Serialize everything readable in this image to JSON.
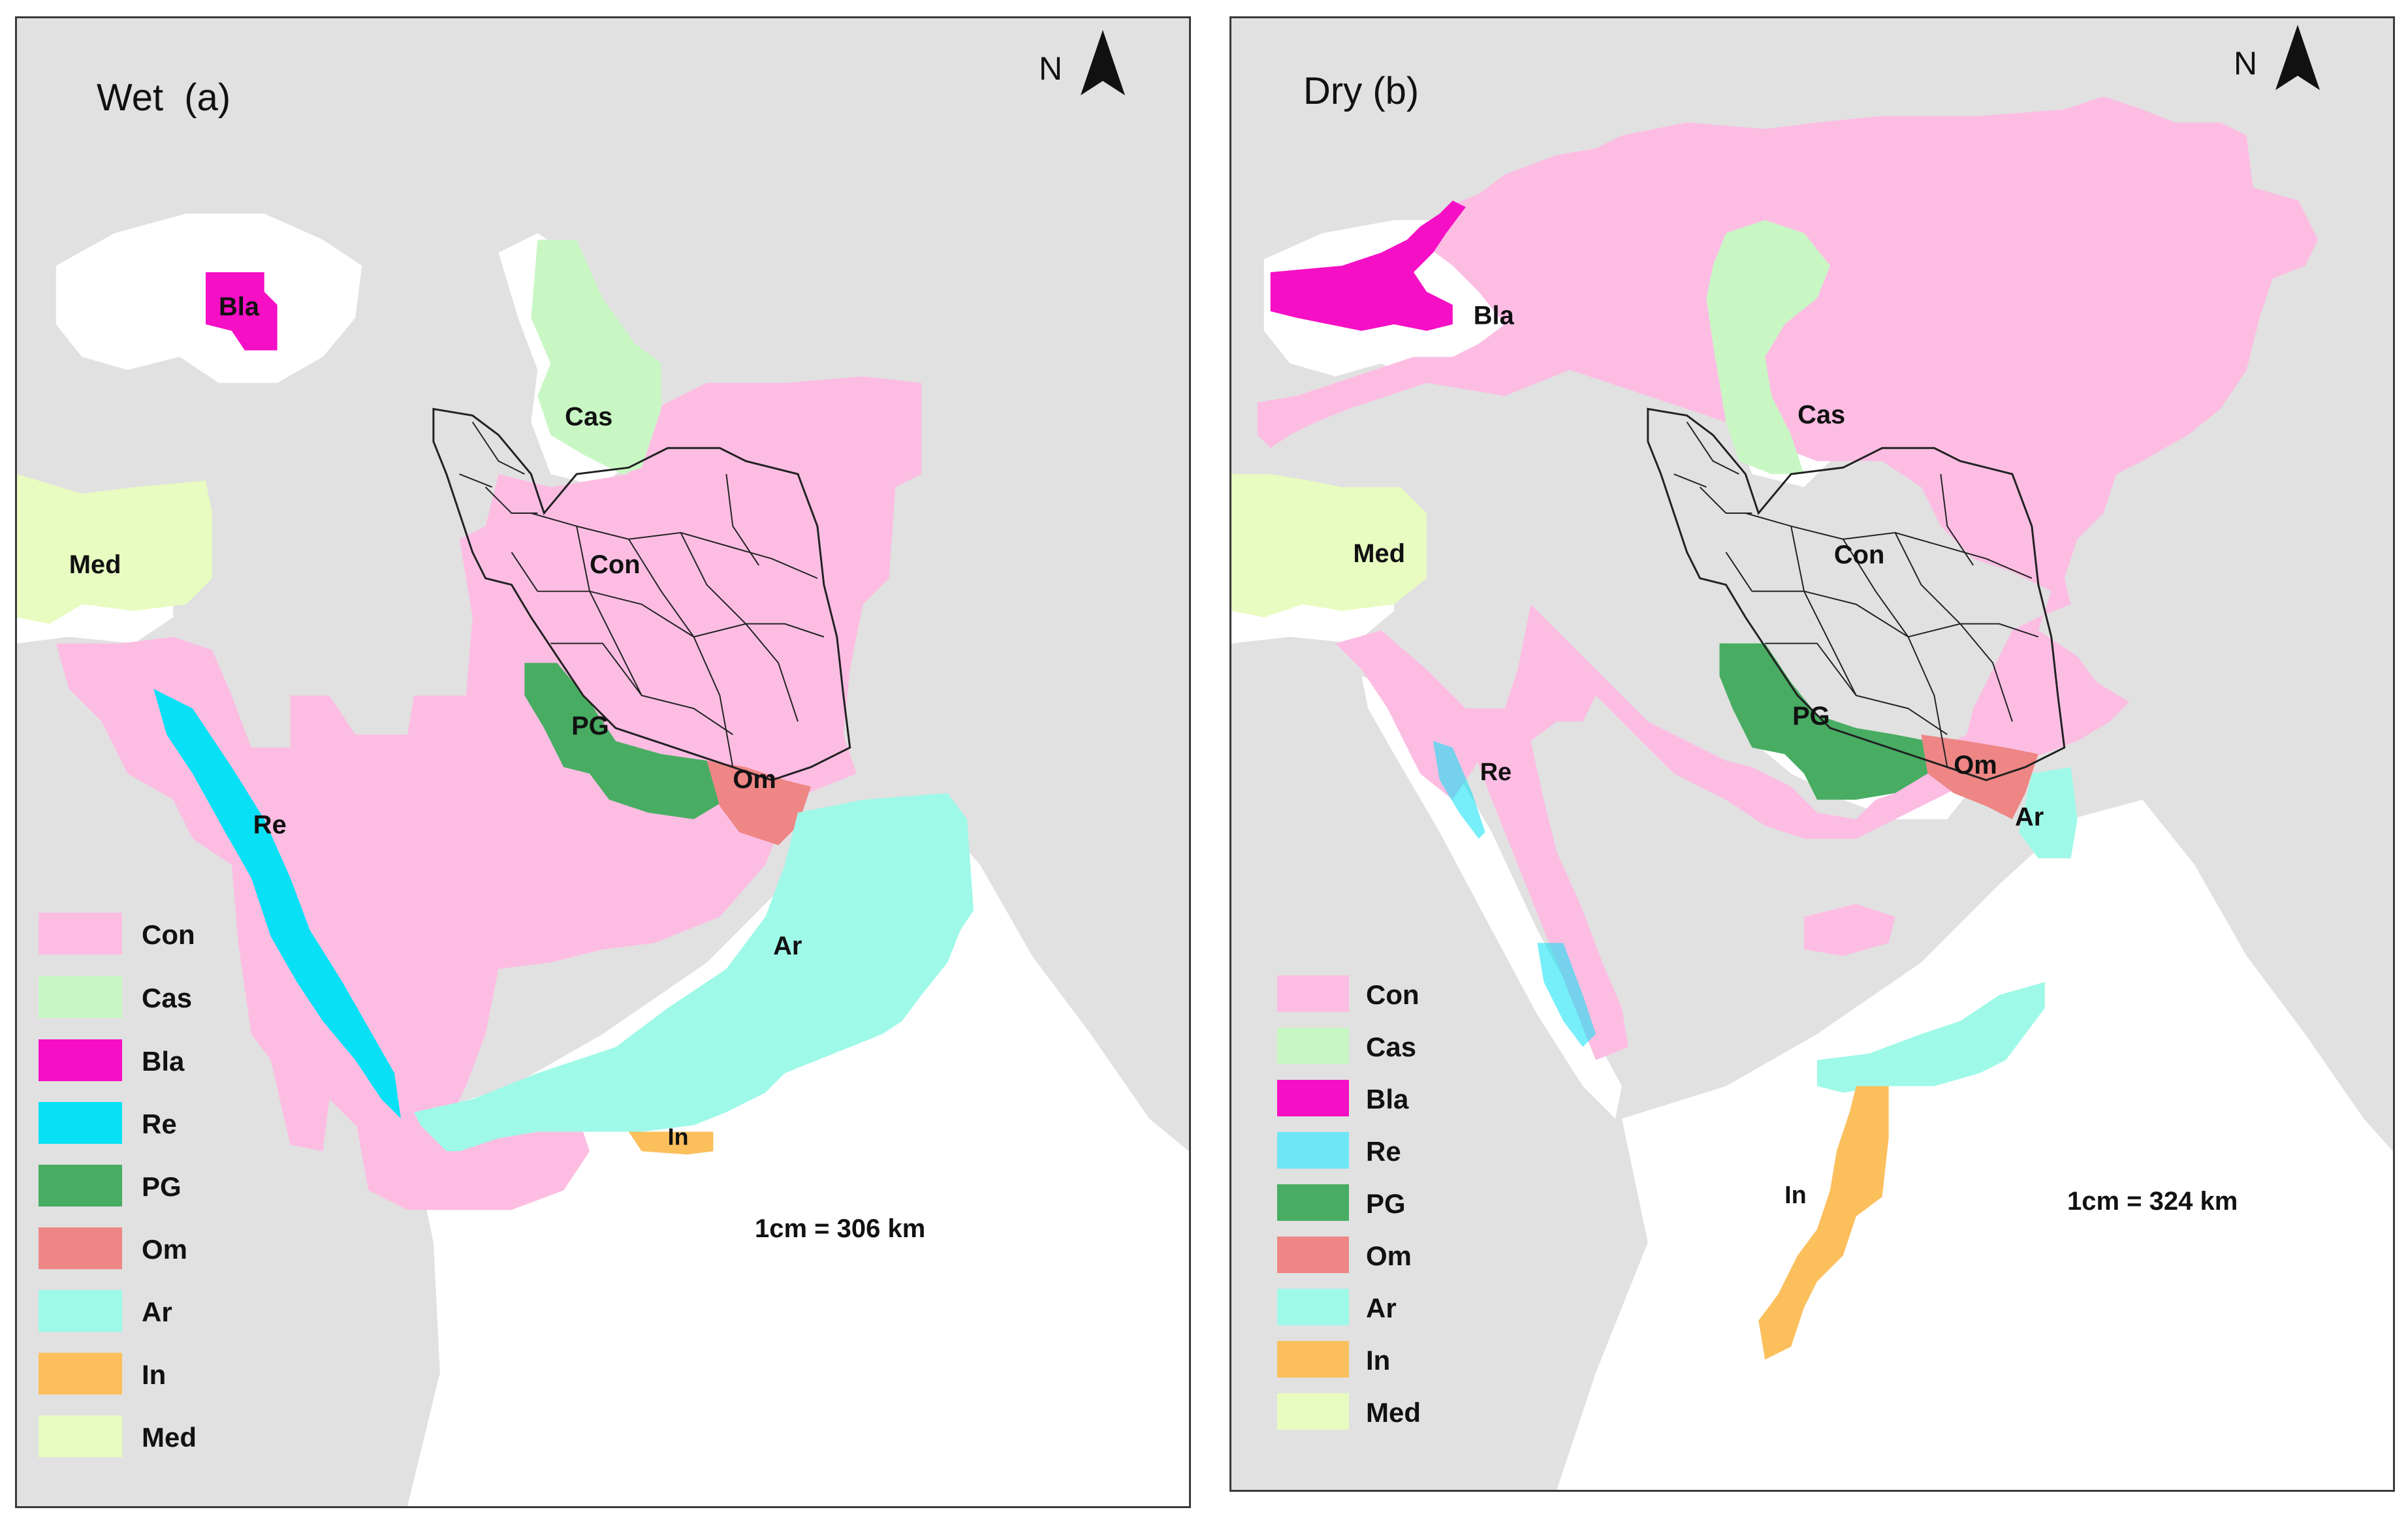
{
  "colors": {
    "land": "#e1e1e1",
    "sea": "#ffffff",
    "border": "#3a3a3a",
    "Con": "#fdbde3",
    "Cas": "#c9f7c4",
    "Bla": "#f50fc5",
    "Re": "#08e1f5",
    "PG": "#48ad63",
    "Om": "#ee8686",
    "Ar": "#9ff9e8",
    "In": "#fbbf5c",
    "Med": "#e8fbc1"
  },
  "panel_a": {
    "title": "Wet  (a)",
    "north_label": "N",
    "scale_text": "1cm = 306 km",
    "region_labels": {
      "Bla": "Bla",
      "Cas": "Cas",
      "Med": "Med",
      "Con": "Con",
      "PG": "PG",
      "Om": "Om",
      "Re": "Re",
      "Ar": "Ar",
      "In": "In"
    },
    "legend": [
      {
        "key": "Con",
        "label": "Con"
      },
      {
        "key": "Cas",
        "label": "Cas"
      },
      {
        "key": "Bla",
        "label": "Bla"
      },
      {
        "key": "Re",
        "label": "Re"
      },
      {
        "key": "PG",
        "label": "PG"
      },
      {
        "key": "Om",
        "label": "Om"
      },
      {
        "key": "Ar",
        "label": "Ar"
      },
      {
        "key": "In",
        "label": "In"
      },
      {
        "key": "Med",
        "label": "Med"
      }
    ]
  },
  "panel_b": {
    "title": "Dry (b)",
    "north_label": "N",
    "scale_text": "1cm = 324 km",
    "region_labels": {
      "Bla": "Bla",
      "Cas": "Cas",
      "Med": "Med",
      "Con": "Con",
      "PG": "PG",
      "Om": "Om",
      "Re": "Re",
      "Ar": "Ar",
      "In": "In"
    },
    "legend": [
      {
        "key": "Con",
        "label": "Con"
      },
      {
        "key": "Cas",
        "label": "Cas"
      },
      {
        "key": "Bla",
        "label": "Bla"
      },
      {
        "key": "Re",
        "label": "Re"
      },
      {
        "key": "PG",
        "label": "PG"
      },
      {
        "key": "Om",
        "label": "Om"
      },
      {
        "key": "Ar",
        "label": "Ar"
      },
      {
        "key": "In",
        "label": "In"
      },
      {
        "key": "Med",
        "label": "Med"
      }
    ]
  }
}
